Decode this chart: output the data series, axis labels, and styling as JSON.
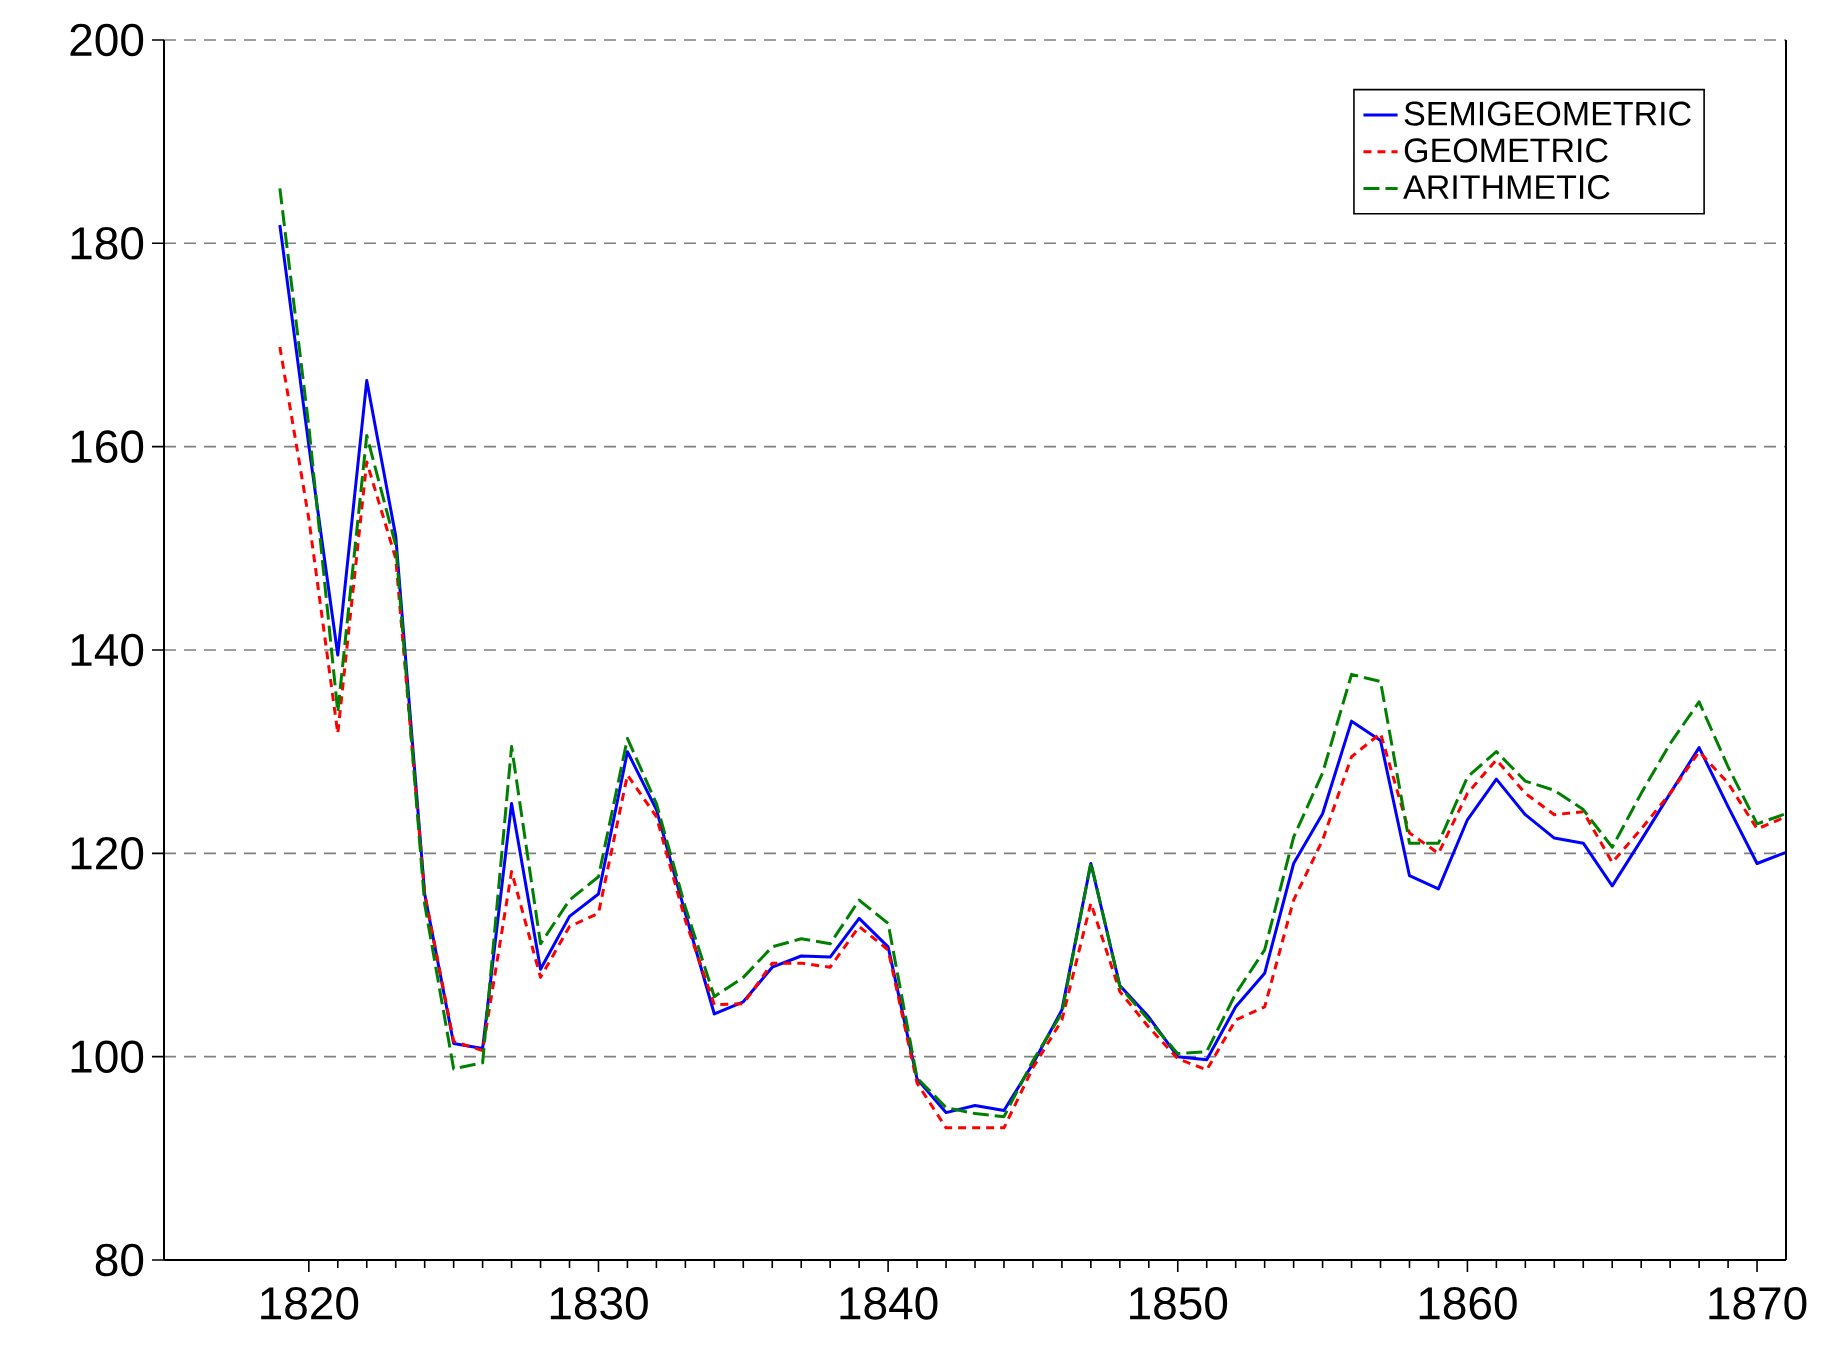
{
  "chart_data": {
    "type": "line",
    "x": [
      1819,
      1820,
      1821,
      1822,
      1823,
      1824,
      1825,
      1826,
      1827,
      1828,
      1829,
      1830,
      1831,
      1832,
      1833,
      1834,
      1835,
      1836,
      1837,
      1838,
      1839,
      1840,
      1841,
      1842,
      1843,
      1844,
      1845,
      1846,
      1847,
      1848,
      1849,
      1850,
      1851,
      1852,
      1853,
      1854,
      1855,
      1856,
      1857,
      1858,
      1859,
      1860,
      1861,
      1862,
      1863,
      1864,
      1865,
      1866,
      1867,
      1868,
      1869,
      1870,
      1871
    ],
    "series": [
      {
        "name": "SEMIGEOMETRIC",
        "color": "#0000ff",
        "line_style": "solid",
        "values": [
          181.8,
          160.1,
          139.5,
          166.5,
          151.2,
          116,
          101.3,
          100.8,
          124.9,
          108.6,
          113.8,
          116,
          130,
          124.3,
          114.1,
          104.2,
          105.4,
          108.8,
          109.9,
          109.8,
          113.6,
          110.8,
          97.8,
          94.5,
          95.2,
          94.7,
          99.3,
          104.6,
          119,
          107,
          103.9,
          100,
          99.7,
          104.9,
          108.2,
          119,
          123.9,
          133,
          131.1,
          117.8,
          116.5,
          123.3,
          127.3,
          123.8,
          121.5,
          121,
          116.8,
          121.3,
          125.9,
          130.4,
          124.6,
          119,
          120.1
        ]
      },
      {
        "name": "GEOMETRIC",
        "color": "#ff0000",
        "line_style": "dashed",
        "values": [
          169.8,
          152.9,
          131.8,
          158.5,
          149,
          116,
          101.5,
          100.6,
          118.2,
          107.8,
          112.8,
          114.1,
          127.7,
          123.6,
          113.4,
          105.1,
          105.2,
          109.2,
          109.2,
          108.8,
          112.8,
          110.5,
          97.4,
          93,
          93,
          93,
          98.9,
          103.6,
          115.1,
          106.4,
          102.9,
          99.8,
          98.7,
          103.6,
          104.9,
          115.4,
          121.3,
          129.5,
          131.8,
          122,
          120,
          125.9,
          129.2,
          125.9,
          123.8,
          124.1,
          119.1,
          122.4,
          125.9,
          130,
          126.9,
          122.4,
          123.6
        ]
      },
      {
        "name": "ARITHMETIC",
        "color": "#008000",
        "line_style": "dashed",
        "values": [
          185.4,
          162,
          133.9,
          161.1,
          150.3,
          115,
          98.8,
          99.4,
          130.5,
          111.1,
          115.4,
          117.7,
          131.3,
          124.9,
          114.7,
          105.9,
          107.8,
          110.8,
          111.6,
          111.1,
          115.4,
          113.1,
          97.9,
          95,
          94.4,
          94.1,
          99.6,
          104.3,
          119.1,
          106.9,
          103.6,
          100.3,
          100.5,
          106.2,
          110.5,
          121.6,
          127.9,
          137.6,
          136.9,
          121,
          121,
          127.5,
          130,
          127.1,
          126.2,
          124.3,
          120.6,
          125.9,
          130.8,
          134.9,
          128.5,
          122.9,
          123.9
        ]
      }
    ],
    "xlim": [
      1815,
      1871
    ],
    "xticks": [
      1820,
      1830,
      1840,
      1850,
      1860,
      1870
    ],
    "ylim": [
      80,
      200
    ],
    "yticks": [
      80,
      100,
      120,
      140,
      160,
      180,
      200
    ],
    "grid": "y",
    "legend": "top right"
  }
}
